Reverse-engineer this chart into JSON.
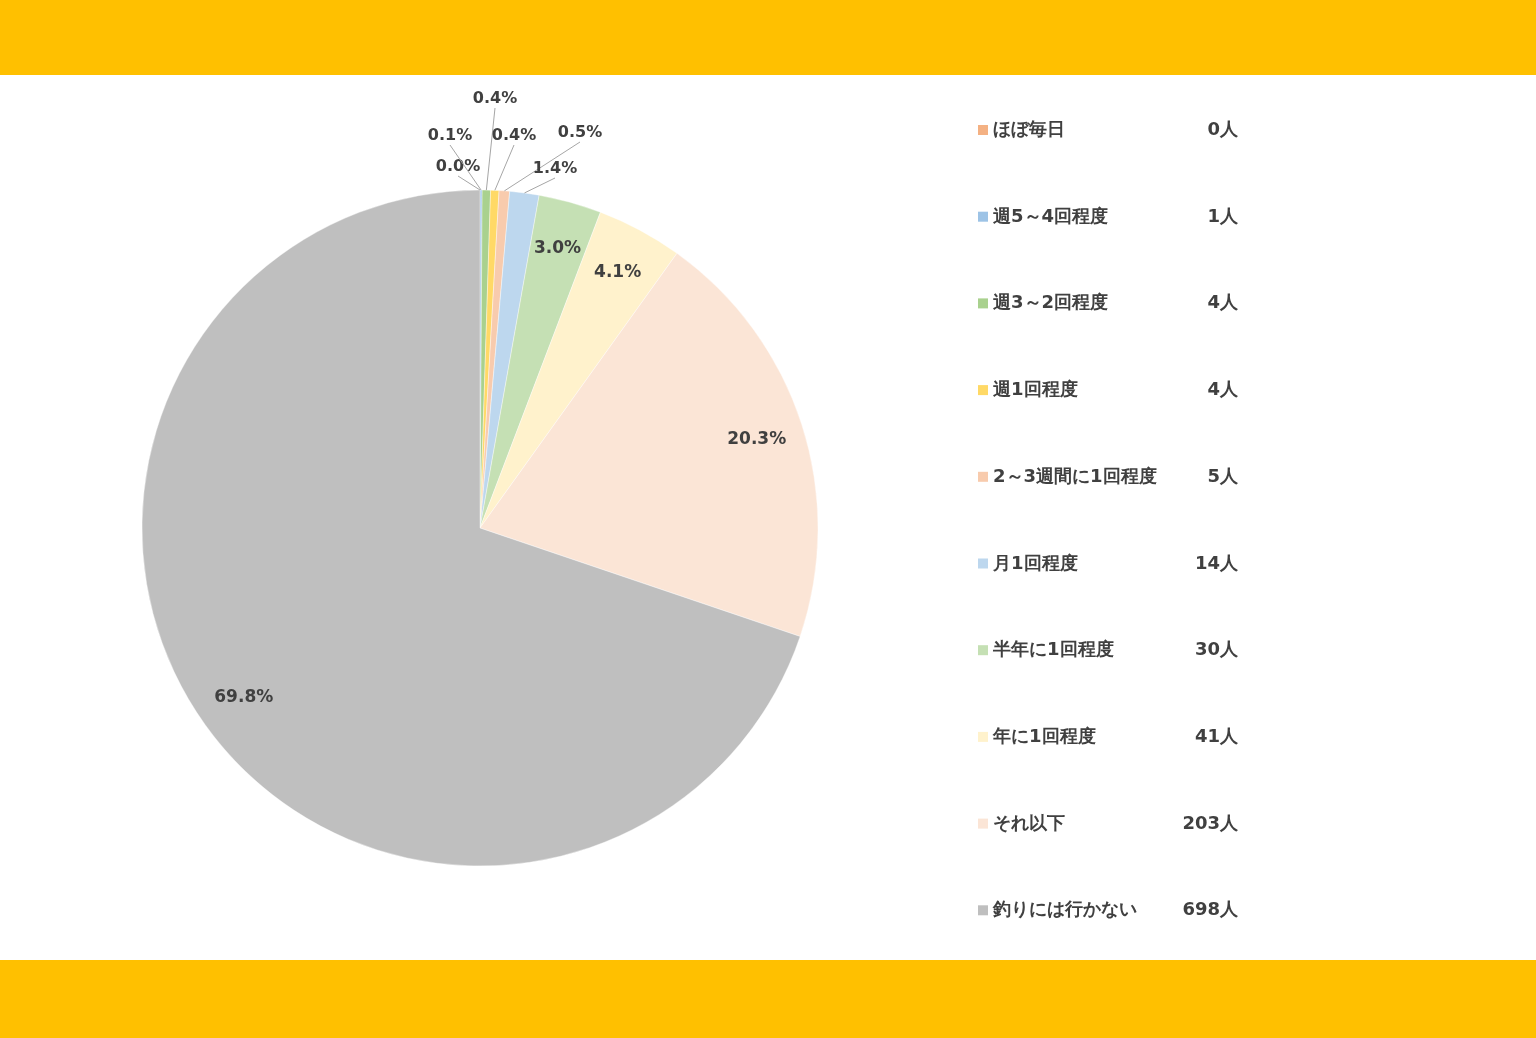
{
  "chart_data": {
    "type": "pie",
    "categories": [
      "ほぼ毎日",
      "週5～4回程度",
      "週3～2回程度",
      "週1回程度",
      "2～3週間に1回程度",
      "月1回程度",
      "半年に1回程度",
      "年に1回程度",
      "それ以下",
      "釣りには行かない"
    ],
    "values": [
      0.0,
      0.1,
      0.4,
      0.4,
      0.5,
      1.4,
      3.0,
      4.1,
      20.3,
      69.8
    ],
    "value_labels": [
      "0.0%",
      "0.1%",
      "0.4%",
      "0.4%",
      "0.5%",
      "1.4%",
      "3.0%",
      "4.1%",
      "20.3%",
      "69.8%"
    ],
    "colors": [
      "#f4b183",
      "#9dc3e6",
      "#a9d18e",
      "#ffd966",
      "#f8cbad",
      "#bdd7ee",
      "#c5e0b4",
      "#fff2cc",
      "#fbe5d6",
      "#bfbfbf"
    ],
    "annotations": [
      "0人",
      "1人",
      "4人",
      "4人",
      "5人",
      "14人",
      "30人",
      "41人",
      "203人",
      "698人"
    ],
    "legend": "right"
  }
}
